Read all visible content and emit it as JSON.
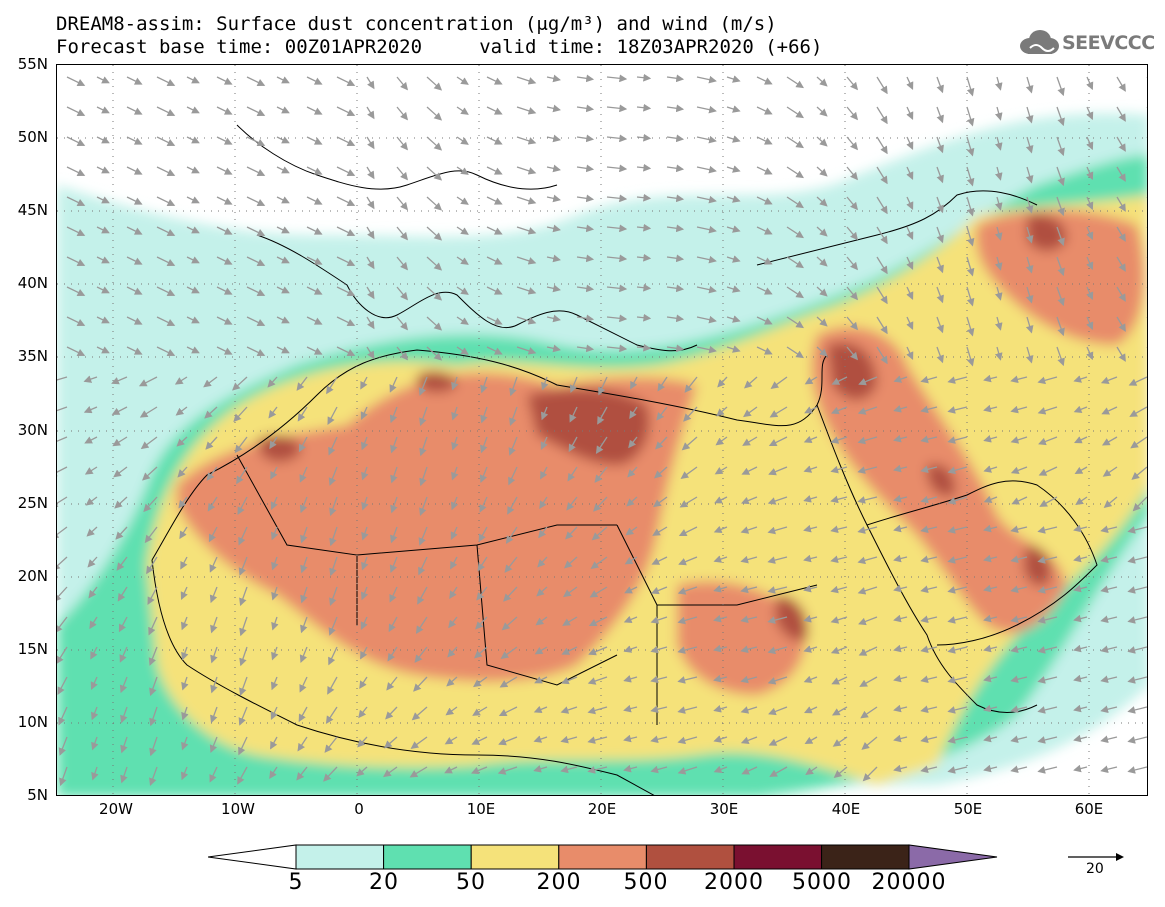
{
  "header": {
    "title_line1": "DREAM8-assim: Surface dust concentration (μg/m³) and wind (m/s)",
    "title_line2": "Forecast base time: 00Z01APR2020     valid time: 18Z03APR2020 (+66)"
  },
  "logo": {
    "text": "SEEVCCC",
    "icon": "cloud-icon"
  },
  "axes": {
    "lat_labels": [
      "55N",
      "50N",
      "45N",
      "40N",
      "35N",
      "30N",
      "25N",
      "20N",
      "15N",
      "10N",
      "5N"
    ],
    "lon_labels": [
      "20W",
      "10W",
      "0",
      "10E",
      "20E",
      "30E",
      "40E",
      "50E",
      "60E"
    ]
  },
  "colorbar": {
    "labels": [
      "5",
      "20",
      "50",
      "200",
      "500",
      "2000",
      "5000",
      "20000"
    ],
    "colors": [
      "#c4f1ea",
      "#5fe0b0",
      "#f5e27a",
      "#e88c6a",
      "#b0503f",
      "#7a1030",
      "#3b2318"
    ],
    "under_color": "#ffffff",
    "over_color": "#8b6aa8"
  },
  "wind_reference": {
    "label": "20"
  }
}
